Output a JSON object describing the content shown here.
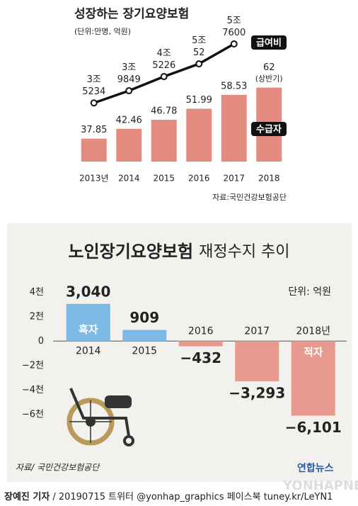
{
  "chart_data": [
    {
      "type": "bar",
      "title": "성장하는 장기요양보험",
      "subtitle": "(단위:만명, 억원)",
      "categories": [
        "2013년",
        "2014",
        "2015",
        "2016",
        "2017",
        "2018"
      ],
      "series": [
        {
          "name": "수급자",
          "type": "bar",
          "color": "#e38b7e",
          "values": [
            37.85,
            42.46,
            46.78,
            51.99,
            58.53,
            62
          ]
        },
        {
          "name": "급여비",
          "type": "line",
          "axis": "y2",
          "color": "#111111",
          "values": [
            35234,
            39849,
            45226,
            50052,
            57600,
            null
          ],
          "value_labels": [
            "3조\n5234",
            "3조\n9849",
            "4조\n5226",
            "5조\n52",
            "5조\n7600",
            null
          ]
        }
      ],
      "annotations": [
        "(상반기)"
      ],
      "ylim": [
        27,
        90
      ],
      "y2lim": [
        13000,
        63500
      ],
      "source": "자료:국민건강보험공단"
    },
    {
      "type": "bar",
      "title": {
        "main": "노인장기요양보험",
        "sub": "재정수지 추이"
      },
      "unit": "단위: 억원",
      "categories": [
        "2014",
        "2015",
        "2016",
        "2017",
        "2018년"
      ],
      "values": [
        3040,
        909,
        -432,
        -3293,
        -6101
      ],
      "value_labels": [
        "3,040",
        "909",
        "−432",
        "−3,293",
        "−6,101"
      ],
      "positive_color": "#7cb9e4",
      "negative_color": "#e99a8e",
      "annotations": [
        "흑자",
        "적자"
      ],
      "ylim": [
        -7000,
        5000
      ],
      "yticks": [
        {
          "value": 4000,
          "label": "4천"
        },
        {
          "value": 2000,
          "label": "2천"
        },
        0,
        {
          "value": -2000,
          "label": "−2천"
        },
        {
          "value": -4000,
          "label": "−4천"
        },
        {
          "value": -6000,
          "label": "−6천"
        }
      ],
      "source": "자료/ 국민건강보험공단"
    }
  ],
  "footer": {
    "byline": "장예진 기자",
    "credit": "/ 20190715 트위터 @yonhap_graphics  페이스북 tuney.kr/LeYN1",
    "logo": "연합뉴스",
    "watermark": "YONHAPNEWS"
  }
}
